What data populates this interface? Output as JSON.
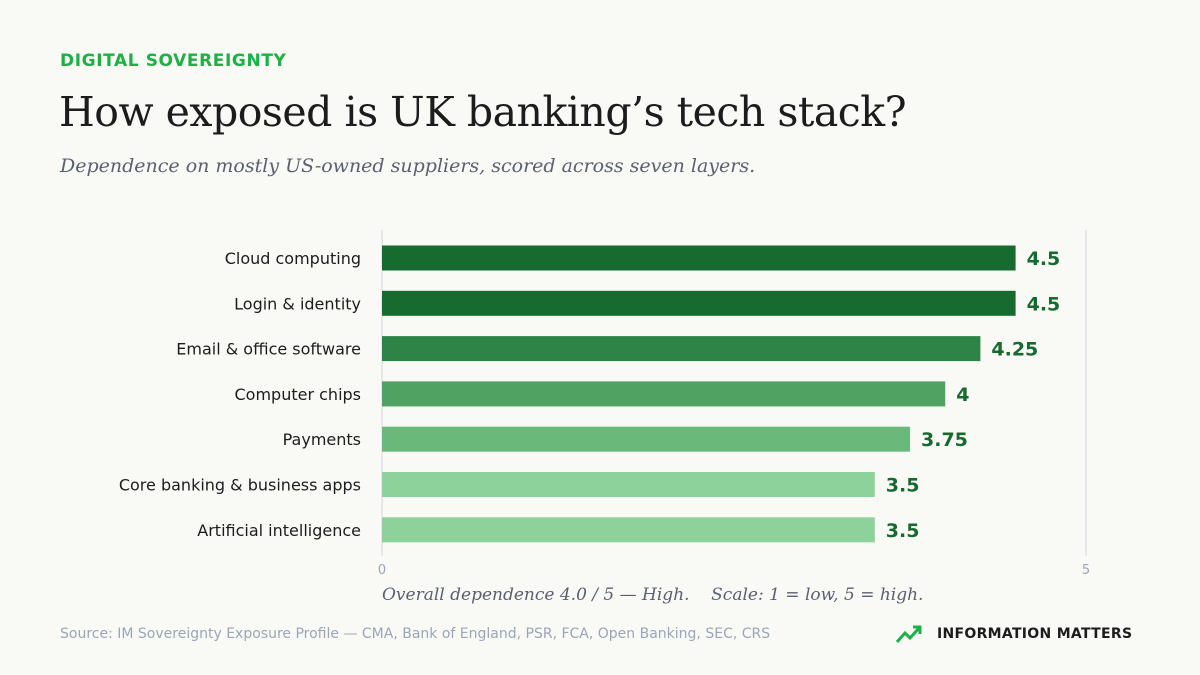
{
  "kicker": "DIGITAL SOVEREIGNTY",
  "title": "How exposed is UK banking’s tech stack?",
  "subtitle": "Dependence on mostly US-owned suppliers, scored across seven layers.",
  "note": "Overall dependence 4.0 / 5 — High.    Scale: 1 = low, 5 = high.",
  "source": "Source: IM Sovereignty Exposure Profile — CMA, Bank of England, PSR, FCA, Open Banking, SEC, CRS",
  "brand": {
    "label": "INFORMATION MATTERS",
    "icon": "trend-up-arrow-icon"
  },
  "colors": {
    "accent": "#1db044",
    "value_label": "#17692f",
    "bars": [
      "#176b2e",
      "#176b2e",
      "#2e8446",
      "#4fa262",
      "#6ab97b",
      "#8dd29b",
      "#8dd29b"
    ]
  },
  "chart_data": {
    "type": "bar",
    "orientation": "horizontal",
    "categories": [
      "Cloud computing",
      "Login & identity",
      "Email & office software",
      "Computer chips",
      "Payments",
      "Core banking & business apps",
      "Artificial intelligence"
    ],
    "values": [
      4.5,
      4.5,
      4.25,
      4,
      3.75,
      3.5,
      3.5
    ],
    "value_labels": [
      "4.5",
      "4.5",
      "4.25",
      "4",
      "3.75",
      "3.5",
      "3.5"
    ],
    "xlim": [
      0,
      5
    ],
    "x_ticks": [
      "0",
      "5"
    ],
    "grid": false
  }
}
